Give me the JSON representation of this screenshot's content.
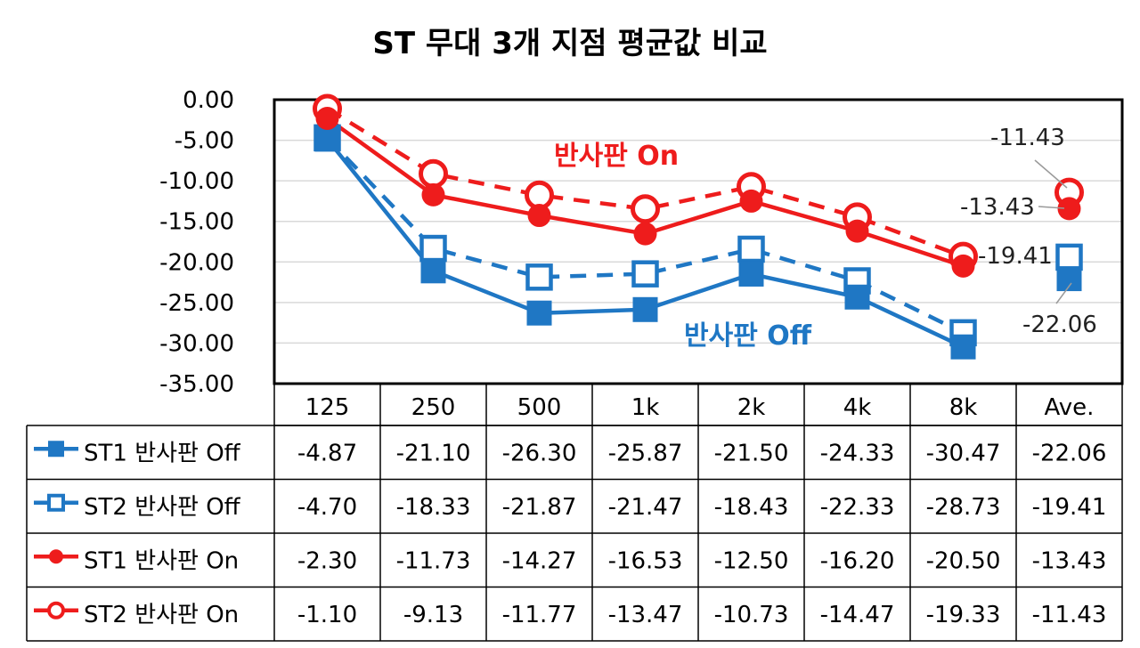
{
  "chart_data": {
    "type": "line",
    "title": "ST 무대 3개 지점 평균값 비교",
    "categories": [
      "125",
      "250",
      "500",
      "1k",
      "2k",
      "4k",
      "8k",
      "Ave."
    ],
    "ylim": [
      -35,
      0
    ],
    "y_ticks": [
      "0.00",
      "-5.00",
      "-10.00",
      "-15.00",
      "-20.00",
      "-25.00",
      "-30.00",
      "-35.00"
    ],
    "grid": true,
    "legend": "data table below chart",
    "series": [
      {
        "name": "ST1 반사판 Off",
        "color": "#1f77c4",
        "dash": false,
        "marker": "filled-square",
        "values": [
          -4.87,
          -21.1,
          -26.3,
          -25.87,
          -21.5,
          -24.33,
          -30.47,
          -22.06
        ],
        "labels": [
          "-4.87",
          "-21.10",
          "-26.30",
          "-25.87",
          "-21.50",
          "-24.33",
          "-30.47",
          "-22.06"
        ]
      },
      {
        "name": "ST2 반사판 Off",
        "color": "#1f77c4",
        "dash": true,
        "marker": "open-square",
        "values": [
          -4.7,
          -18.33,
          -21.87,
          -21.47,
          -18.43,
          -22.33,
          -28.73,
          -19.41
        ],
        "labels": [
          "-4.70",
          "-18.33",
          "-21.87",
          "-21.47",
          "-18.43",
          "-22.33",
          "-28.73",
          "-19.41"
        ]
      },
      {
        "name": "ST1 반사판 On",
        "color": "#ee1c1c",
        "dash": false,
        "marker": "filled-circle",
        "values": [
          -2.3,
          -11.73,
          -14.27,
          -16.53,
          -12.5,
          -16.2,
          -20.5,
          -13.43
        ],
        "labels": [
          "-2.30",
          "-11.73",
          "-14.27",
          "-16.53",
          "-12.50",
          "-16.20",
          "-20.50",
          "-13.43"
        ]
      },
      {
        "name": "ST2 반사판 On",
        "color": "#ee1c1c",
        "dash": true,
        "marker": "open-circle",
        "values": [
          -1.1,
          -9.13,
          -11.77,
          -13.47,
          -10.73,
          -14.47,
          -19.33,
          -11.43
        ],
        "labels": [
          "-1.10",
          "-9.13",
          "-11.77",
          "-13.47",
          "-10.73",
          "-14.47",
          "-19.33",
          "-11.43"
        ]
      }
    ],
    "annotations": [
      {
        "text": "반사판 On",
        "color": "#ee1c1c"
      },
      {
        "text": "반사판 Off",
        "color": "#1f77c4"
      },
      {
        "text": "-11.43"
      },
      {
        "text": "-13.43"
      },
      {
        "text": "-19.41"
      },
      {
        "text": "-22.06"
      }
    ]
  }
}
